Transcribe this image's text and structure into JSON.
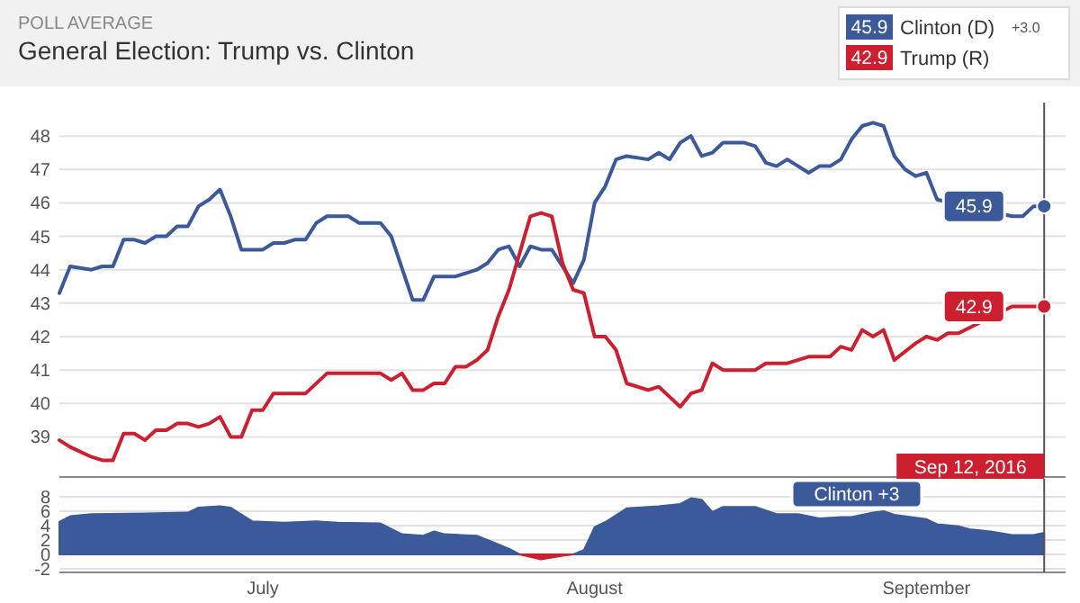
{
  "chart_data": [
    {
      "type": "line",
      "subtitle": "POLL AVERAGE",
      "title": "General Election: Trump vs. Clinton",
      "legend": "top right",
      "grid": "y",
      "tick_labels": "y",
      "xlim": [
        "2016-06-12",
        "2016-09-14"
      ],
      "ylim": [
        37.8,
        49
      ],
      "yticks": [
        39,
        40,
        41,
        42,
        43,
        44,
        45,
        46,
        47,
        48
      ],
      "series": [
        {
          "name": "Clinton (D)",
          "color": "#3c5a99",
          "x": [
            "2016-06-12",
            "2016-06-13",
            "2016-06-15",
            "2016-06-16",
            "2016-06-17",
            "2016-06-18",
            "2016-06-19",
            "2016-06-20",
            "2016-06-21",
            "2016-06-22",
            "2016-06-23",
            "2016-06-24",
            "2016-06-25",
            "2016-06-26",
            "2016-06-27",
            "2016-06-28",
            "2016-06-29",
            "2016-07-01",
            "2016-07-02",
            "2016-07-03",
            "2016-07-04",
            "2016-07-05",
            "2016-07-06",
            "2016-07-07",
            "2016-07-09",
            "2016-07-10",
            "2016-07-12",
            "2016-07-13",
            "2016-07-15",
            "2016-07-16",
            "2016-07-17",
            "2016-07-19",
            "2016-07-21",
            "2016-07-22",
            "2016-07-23",
            "2016-07-24",
            "2016-07-25",
            "2016-07-26",
            "2016-07-27",
            "2016-07-28",
            "2016-07-30",
            "2016-07-31",
            "2016-08-01",
            "2016-08-02",
            "2016-08-03",
            "2016-08-04",
            "2016-08-06",
            "2016-08-07",
            "2016-08-08",
            "2016-08-09",
            "2016-08-10",
            "2016-08-11",
            "2016-08-12",
            "2016-08-13",
            "2016-08-15",
            "2016-08-16",
            "2016-08-17",
            "2016-08-18",
            "2016-08-19",
            "2016-08-21",
            "2016-08-22",
            "2016-08-23",
            "2016-08-24",
            "2016-08-25",
            "2016-08-26",
            "2016-08-27",
            "2016-08-28",
            "2016-08-29",
            "2016-08-30",
            "2016-08-31",
            "2016-09-01",
            "2016-09-02",
            "2016-09-09",
            "2016-09-10",
            "2016-09-11",
            "2016-09-12"
          ],
          "values": [
            43.3,
            44.1,
            44.0,
            44.1,
            44.1,
            44.9,
            44.9,
            44.8,
            45.0,
            45.0,
            45.3,
            45.3,
            45.9,
            46.1,
            46.4,
            45.6,
            44.6,
            44.6,
            44.8,
            44.8,
            44.9,
            44.9,
            45.4,
            45.6,
            45.6,
            45.4,
            45.4,
            45.0,
            43.1,
            43.1,
            43.8,
            43.8,
            44.0,
            44.2,
            44.6,
            44.7,
            44.1,
            44.7,
            44.6,
            44.6,
            43.6,
            44.3,
            46.0,
            46.5,
            47.3,
            47.4,
            47.3,
            47.5,
            47.3,
            47.8,
            48.0,
            47.4,
            47.5,
            47.8,
            47.8,
            47.7,
            47.2,
            47.1,
            47.3,
            46.9,
            47.1,
            47.1,
            47.3,
            47.9,
            48.3,
            48.4,
            48.3,
            47.4,
            47.0,
            46.8,
            46.9,
            46.1,
            45.6,
            45.6,
            45.9,
            45.9
          ]
        },
        {
          "name": "Trump (R)",
          "color": "#cc1f2f",
          "x": [
            "2016-06-12",
            "2016-06-13",
            "2016-06-15",
            "2016-06-16",
            "2016-06-17",
            "2016-06-18",
            "2016-06-19",
            "2016-06-20",
            "2016-06-21",
            "2016-06-22",
            "2016-06-23",
            "2016-06-24",
            "2016-06-25",
            "2016-06-26",
            "2016-06-27",
            "2016-06-28",
            "2016-06-29",
            "2016-06-30",
            "2016-07-01",
            "2016-07-02",
            "2016-07-05",
            "2016-07-07",
            "2016-07-12",
            "2016-07-13",
            "2016-07-14",
            "2016-07-15",
            "2016-07-16",
            "2016-07-17",
            "2016-07-18",
            "2016-07-19",
            "2016-07-20",
            "2016-07-21",
            "2016-07-22",
            "2016-07-23",
            "2016-07-24",
            "2016-07-26",
            "2016-07-27",
            "2016-07-28",
            "2016-07-29",
            "2016-07-30",
            "2016-07-31",
            "2016-08-01",
            "2016-08-02",
            "2016-08-03",
            "2016-08-04",
            "2016-08-06",
            "2016-08-07",
            "2016-08-08",
            "2016-08-09",
            "2016-08-10",
            "2016-08-11",
            "2016-08-12",
            "2016-08-13",
            "2016-08-16",
            "2016-08-17",
            "2016-08-19",
            "2016-08-21",
            "2016-08-23",
            "2016-08-24",
            "2016-08-25",
            "2016-08-26",
            "2016-08-27",
            "2016-08-28",
            "2016-08-29",
            "2016-08-31",
            "2016-09-01",
            "2016-09-02",
            "2016-09-03",
            "2016-09-04",
            "2016-09-09",
            "2016-09-12"
          ],
          "values": [
            38.9,
            38.7,
            38.4,
            38.3,
            38.3,
            39.1,
            39.1,
            38.9,
            39.2,
            39.2,
            39.4,
            39.4,
            39.3,
            39.4,
            39.6,
            39.0,
            39.0,
            39.8,
            39.8,
            40.3,
            40.3,
            40.9,
            40.9,
            40.7,
            40.9,
            40.4,
            40.4,
            40.6,
            40.6,
            41.1,
            41.1,
            41.3,
            41.6,
            42.6,
            43.4,
            45.6,
            45.7,
            45.6,
            44.2,
            43.4,
            43.3,
            42.0,
            42.0,
            41.6,
            40.6,
            40.4,
            40.5,
            40.2,
            39.9,
            40.3,
            40.4,
            41.2,
            41.0,
            41.0,
            41.2,
            41.2,
            41.4,
            41.4,
            41.7,
            41.6,
            42.2,
            42.0,
            42.2,
            41.3,
            41.8,
            42.0,
            41.9,
            42.1,
            42.1,
            42.9,
            42.9
          ]
        }
      ],
      "annotations": [
        {
          "text": "45.9",
          "x": "2016-09-12",
          "y": 45.9
        },
        {
          "text": "42.9",
          "x": "2016-09-12",
          "y": 42.9
        },
        "+3.0"
      ],
      "ref_lines": [
        {
          "axis": "x",
          "value": "2016-09-12",
          "color": "#555555"
        }
      ]
    },
    {
      "type": "area",
      "grid": "y",
      "xlim": [
        "2016-06-12",
        "2016-09-14"
      ],
      "xticks": [
        {
          "value": "2016-07-01",
          "label": "July"
        },
        {
          "value": "2016-08-01",
          "label": "August"
        },
        {
          "value": "2016-09-01",
          "label": "September"
        }
      ],
      "ylim": [
        -2.5,
        10.5
      ],
      "yticks": [
        -2,
        0,
        2,
        4,
        6,
        8
      ],
      "series": [
        {
          "color": "#3c5a99",
          "x": [
            "2016-06-12",
            "2016-06-13",
            "2016-06-15",
            "2016-06-20",
            "2016-06-24",
            "2016-06-25",
            "2016-06-27",
            "2016-06-28",
            "2016-06-30",
            "2016-07-03",
            "2016-07-06",
            "2016-07-08",
            "2016-07-12",
            "2016-07-14",
            "2016-07-16",
            "2016-07-17",
            "2016-07-18",
            "2016-07-21",
            "2016-07-22",
            "2016-07-24",
            "2016-07-25",
            "2016-07-27",
            "2016-07-30",
            "2016-07-31",
            "2016-08-01",
            "2016-08-02",
            "2016-08-04",
            "2016-08-07",
            "2016-08-09",
            "2016-08-10",
            "2016-08-11",
            "2016-08-12",
            "2016-08-13",
            "2016-08-16",
            "2016-08-18",
            "2016-08-20",
            "2016-08-22",
            "2016-08-24",
            "2016-08-25",
            "2016-08-27",
            "2016-08-28",
            "2016-08-29",
            "2016-09-01",
            "2016-09-02",
            "2016-09-04",
            "2016-09-05",
            "2016-09-07",
            "2016-09-09",
            "2016-09-11",
            "2016-09-12"
          ],
          "values": [
            4.5,
            5.3,
            5.6,
            5.7,
            5.8,
            6.5,
            6.7,
            6.5,
            4.6,
            4.4,
            4.6,
            4.4,
            4.3,
            2.8,
            2.6,
            3.2,
            2.8,
            2.6,
            2.0,
            0.8,
            0.0,
            null,
            0.0,
            0.6,
            3.8,
            4.5,
            6.4,
            6.7,
            7.0,
            7.8,
            7.6,
            5.9,
            6.6,
            6.6,
            5.6,
            5.6,
            5.0,
            5.2,
            5.2,
            5.8,
            6.0,
            5.5,
            4.9,
            4.2,
            3.9,
            3.5,
            3.2,
            2.7,
            2.7,
            3.0
          ]
        },
        {
          "color": "#cc1f2f",
          "x": [
            "2016-07-25",
            "2016-07-27",
            "2016-07-29",
            "2016-07-30"
          ],
          "values": [
            0.0,
            -0.7,
            -0.2,
            0.0
          ]
        }
      ],
      "annotations": [
        "Clinton +3"
      ],
      "ref_lines": [
        {
          "axis": "x",
          "value": "2016-09-12",
          "label": "Sep 12, 2016",
          "color": "#555555"
        }
      ]
    }
  ]
}
